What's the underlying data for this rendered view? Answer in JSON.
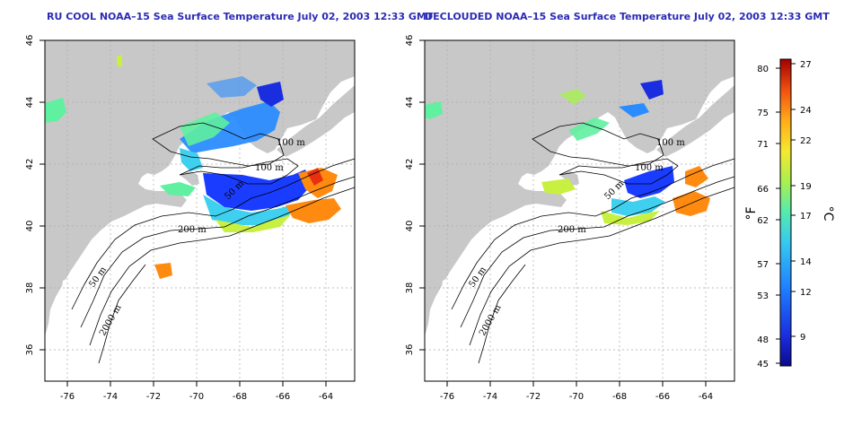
{
  "panels": [
    {
      "id": "left",
      "title": "RU COOL NOAA–15 Sea Surface Temperature July 02, 2003 12:33 GMT"
    },
    {
      "id": "right",
      "title": "DECLOUDED NOAA–15 Sea Surface Temperature July 02, 2003 12:33 GMT"
    }
  ],
  "map": {
    "lon_ticks": [
      "-76",
      "-74",
      "-72",
      "-70",
      "-68",
      "-66",
      "-64"
    ],
    "lat_ticks": [
      "46",
      "44",
      "42",
      "40",
      "38",
      "36"
    ],
    "lon_range": [
      -77.2,
      -62.8
    ],
    "lat_range": [
      35.0,
      46.0
    ],
    "land_color": "#c8c8c8",
    "ocean_color": "#ffffff",
    "contour_labels": [
      "100 m",
      "100 m",
      "50 m",
      "200 m",
      "50 m",
      "2000 m"
    ]
  },
  "colorbar": {
    "fahrenheit_label": "°F",
    "celsius_label": "°C",
    "fahrenheit_ticks": [
      "80",
      "75",
      "71",
      "66",
      "62",
      "57",
      "53",
      "48",
      "45"
    ],
    "celsius_ticks": [
      "27",
      "24",
      "22",
      "19",
      "17",
      "14",
      "12",
      "9"
    ],
    "colors": [
      "#08088a",
      "#1a3cff",
      "#2a8cff",
      "#3fd0f0",
      "#5ff0a0",
      "#c8f040",
      "#ffd020",
      "#ff8a10",
      "#e83010",
      "#a00000"
    ]
  }
}
